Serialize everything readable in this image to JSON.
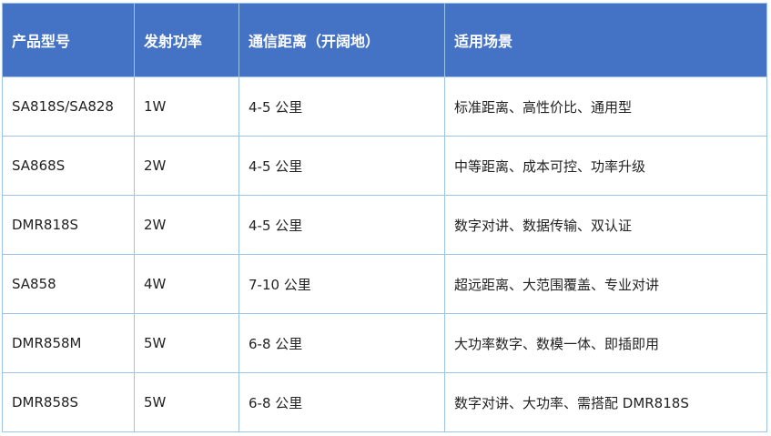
{
  "table": {
    "headers": [
      "产品型号",
      "发射功率",
      "通信距离（开阔地）",
      "适用场景"
    ],
    "rows": [
      [
        "SA818S/SA828",
        "1W",
        "4-5 公里",
        "标准距离、高性价比、通用型"
      ],
      [
        "SA868S",
        "2W",
        "4-5 公里",
        "中等距离、成本可控、功率升级"
      ],
      [
        "DMR818S",
        "2W",
        "4-5 公里",
        "数字对讲、数据传输、双认证"
      ],
      [
        "SA858",
        "4W",
        "7-10 公里",
        "超远距离、大范围覆盖、专业对讲"
      ],
      [
        "DMR858M",
        "5W",
        "6-8 公里",
        "大功率数字、数模一体、即插即用"
      ],
      [
        "DMR858S",
        "5W",
        "6-8 公里",
        "数字对讲、大功率、需搭配 DMR818S"
      ]
    ]
  }
}
